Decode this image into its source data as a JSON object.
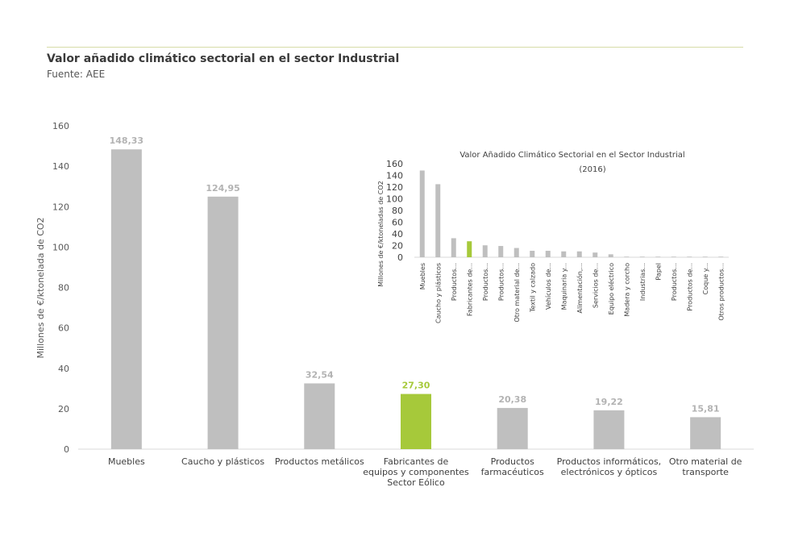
{
  "header": {
    "title": "Valor añadido climático sectorial en el sector Industrial",
    "source": "Fuente: AEE"
  },
  "colors": {
    "bar": "#bfbfbf",
    "highlight": "#a6c93a",
    "label": "#b3b3b3",
    "accent_line": "#d6dca8"
  },
  "chart_data": [
    {
      "type": "bar",
      "title": "",
      "ylabel": "Millones de €/ktonelada de CO2",
      "ylim": [
        0,
        160
      ],
      "yticks": [
        0,
        20,
        40,
        60,
        80,
        100,
        120,
        140,
        160
      ],
      "grid": false,
      "categories": [
        "Muebles",
        "Caucho y plásticos",
        "Productos metálicos",
        "Fabricantes de equipos y componentes Sector Eólico",
        "Productos farmacéuticos",
        "Productos informáticos, electrónicos y ópticos",
        "Otro material de transporte"
      ],
      "category_lines": [
        [
          "Muebles"
        ],
        [
          "Caucho y plásticos"
        ],
        [
          "Productos metálicos"
        ],
        [
          "Fabricantes de",
          "equipos y componentes",
          "Sector Eólico"
        ],
        [
          "Productos",
          "farmacéuticos"
        ],
        [
          "Productos informáticos,",
          "electrónicos y ópticos"
        ],
        [
          "Otro material de",
          "transporte"
        ]
      ],
      "values": [
        148.33,
        124.95,
        32.54,
        27.3,
        20.38,
        19.22,
        15.81
      ],
      "data_labels": [
        "148,33",
        "124,95",
        "32,54",
        "27,30",
        "20,38",
        "19,22",
        "15,81"
      ],
      "highlight_index": 3
    },
    {
      "type": "bar",
      "title": "Valor Añadido Climático Sectorial en el Sector Industrial",
      "subtitle": "(2016)",
      "ylabel": "Millones de €/ktoneladas de CO2",
      "ylim": [
        0,
        160
      ],
      "yticks": [
        0,
        20,
        40,
        60,
        80,
        100,
        120,
        140,
        160
      ],
      "grid": false,
      "categories": [
        "Muebles",
        "Caucho y plásticos",
        "Productos...",
        "Fabricantes de...",
        "Productos...",
        "Productos...",
        "Otro material de...",
        "Textil y calzado",
        "Vehículos de...",
        "Maquinaria y...",
        "Alimentación,...",
        "Servicios de...",
        "Equipo eléctrico",
        "Madera y corcho",
        "Industrias...",
        "Papel",
        "Productos...",
        "Productos de...",
        "Coque y...",
        "Otros productos..."
      ],
      "values": [
        148.33,
        124.95,
        32.54,
        27.3,
        20.38,
        19.22,
        15.81,
        11,
        11,
        10,
        10,
        8,
        5,
        1,
        1,
        1,
        1,
        1,
        1,
        1
      ],
      "highlight_index": 3
    }
  ]
}
